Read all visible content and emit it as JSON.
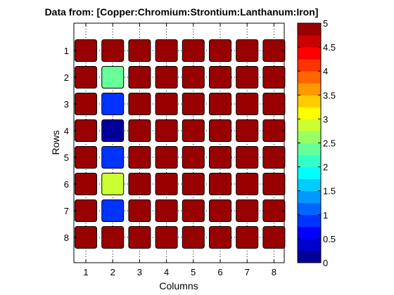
{
  "chart_data": {
    "type": "heatmap",
    "title": "Data from: [Copper:Chromium:Strontium:Lanthanum:Iron]",
    "xlabel": "Columns",
    "ylabel": "Rows",
    "columns": [
      "1",
      "2",
      "3",
      "4",
      "5",
      "6",
      "7",
      "8"
    ],
    "rows": [
      "1",
      "2",
      "3",
      "4",
      "5",
      "6",
      "7",
      "8"
    ],
    "values": [
      [
        5,
        5,
        5,
        5,
        5,
        5,
        5,
        5
      ],
      [
        5,
        2.4,
        5,
        5,
        5,
        5,
        5,
        5
      ],
      [
        5,
        0.75,
        5,
        5,
        5,
        5,
        5,
        5
      ],
      [
        5,
        0.2,
        5,
        5,
        5,
        5,
        5,
        5
      ],
      [
        5,
        0.75,
        5,
        5,
        5,
        5,
        5,
        5
      ],
      [
        5,
        2.8,
        5,
        5,
        5,
        5,
        5,
        5
      ],
      [
        5,
        0.75,
        5,
        5,
        5,
        5,
        5,
        5
      ],
      [
        5,
        5,
        5,
        5,
        5,
        5,
        5,
        5
      ]
    ],
    "colorbar": {
      "range": [
        0,
        5
      ],
      "ticks": [
        "0",
        "0.5",
        "1",
        "1.5",
        "2",
        "2.5",
        "3",
        "3.5",
        "4",
        "4.5",
        "5"
      ],
      "colormap": "jet",
      "levels": 20
    },
    "grid": true
  }
}
